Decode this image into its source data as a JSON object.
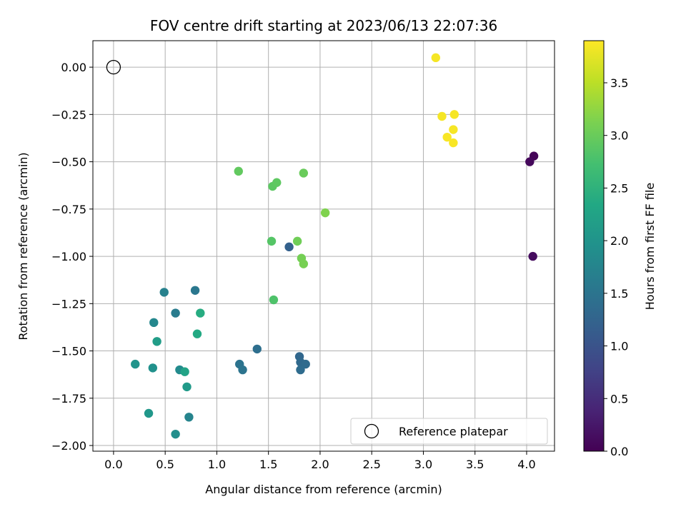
{
  "chart_data": {
    "type": "scatter",
    "title": "FOV centre drift starting at 2023/06/13 22:07:36",
    "xlabel": "Angular distance from reference (arcmin)",
    "ylabel": "Rotation from reference (arcmin)",
    "xlim": [
      -0.2,
      4.27
    ],
    "ylim": [
      -2.03,
      0.14
    ],
    "xticks": [
      "0.0",
      "0.5",
      "1.0",
      "1.5",
      "2.0",
      "2.5",
      "3.0",
      "3.5",
      "4.0"
    ],
    "xtick_values": [
      0,
      0.5,
      1,
      1.5,
      2,
      2.5,
      3,
      3.5,
      4
    ],
    "yticks": [
      "0.00",
      "−0.25",
      "−0.50",
      "−0.75",
      "−1.00",
      "−1.25",
      "−1.50",
      "−1.75",
      "−2.00"
    ],
    "ytick_values": [
      0,
      -0.25,
      -0.5,
      -0.75,
      -1.0,
      -1.25,
      -1.5,
      -1.75,
      -2.0
    ],
    "grid": true,
    "colormap": "viridis",
    "colorbar": {
      "label": "Hours from first FF file",
      "range": [
        0,
        3.9
      ],
      "ticks": [
        "0.0",
        "0.5",
        "1.0",
        "1.5",
        "2.0",
        "2.5",
        "3.0",
        "3.5"
      ],
      "tick_values": [
        0,
        0.5,
        1.0,
        1.5,
        2.0,
        2.5,
        3.0,
        3.5
      ]
    },
    "legend": {
      "placement": "lower-right",
      "entries": [
        {
          "label": "Reference platepar",
          "marker": "open-circle"
        }
      ]
    },
    "reference_point": {
      "x": 0.0,
      "y": 0.0
    },
    "points": [
      {
        "x": 4.07,
        "y": -0.47,
        "c": 0.05
      },
      {
        "x": 4.03,
        "y": -0.5,
        "c": 0.08
      },
      {
        "x": 4.06,
        "y": -1.0,
        "c": 0.12
      },
      {
        "x": 1.7,
        "y": -0.95,
        "c": 1.2
      },
      {
        "x": 1.8,
        "y": -1.53,
        "c": 1.3
      },
      {
        "x": 1.81,
        "y": -1.56,
        "c": 1.33
      },
      {
        "x": 1.86,
        "y": -1.57,
        "c": 1.36
      },
      {
        "x": 1.81,
        "y": -1.6,
        "c": 1.38
      },
      {
        "x": 1.39,
        "y": -1.49,
        "c": 1.42
      },
      {
        "x": 1.22,
        "y": -1.57,
        "c": 1.48
      },
      {
        "x": 1.25,
        "y": -1.6,
        "c": 1.5
      },
      {
        "x": 0.79,
        "y": -1.18,
        "c": 1.55
      },
      {
        "x": 0.6,
        "y": -1.3,
        "c": 1.62
      },
      {
        "x": 0.49,
        "y": -1.19,
        "c": 1.7
      },
      {
        "x": 0.73,
        "y": -1.85,
        "c": 1.75
      },
      {
        "x": 0.39,
        "y": -1.35,
        "c": 1.8
      },
      {
        "x": 0.64,
        "y": -1.6,
        "c": 1.85
      },
      {
        "x": 0.6,
        "y": -1.94,
        "c": 1.9
      },
      {
        "x": 0.38,
        "y": -1.59,
        "c": 1.95
      },
      {
        "x": 0.21,
        "y": -1.57,
        "c": 2.0
      },
      {
        "x": 0.34,
        "y": -1.83,
        "c": 2.05
      },
      {
        "x": 0.71,
        "y": -1.69,
        "c": 2.1
      },
      {
        "x": 0.42,
        "y": -1.45,
        "c": 2.15
      },
      {
        "x": 0.69,
        "y": -1.61,
        "c": 2.25
      },
      {
        "x": 0.81,
        "y": -1.41,
        "c": 2.35
      },
      {
        "x": 0.84,
        "y": -1.3,
        "c": 2.4
      },
      {
        "x": 1.55,
        "y": -1.23,
        "c": 2.8
      },
      {
        "x": 1.53,
        "y": -0.92,
        "c": 2.85
      },
      {
        "x": 1.54,
        "y": -0.63,
        "c": 2.9
      },
      {
        "x": 1.58,
        "y": -0.61,
        "c": 2.92
      },
      {
        "x": 1.21,
        "y": -0.55,
        "c": 2.95
      },
      {
        "x": 1.84,
        "y": -0.56,
        "c": 3.0
      },
      {
        "x": 1.78,
        "y": -0.92,
        "c": 3.05
      },
      {
        "x": 1.82,
        "y": -1.01,
        "c": 3.08
      },
      {
        "x": 1.84,
        "y": -1.04,
        "c": 3.1
      },
      {
        "x": 2.05,
        "y": -0.77,
        "c": 3.15
      },
      {
        "x": 3.12,
        "y": 0.05,
        "c": 3.85
      },
      {
        "x": 3.18,
        "y": -0.26,
        "c": 3.85
      },
      {
        "x": 3.3,
        "y": -0.25,
        "c": 3.86
      },
      {
        "x": 3.29,
        "y": -0.33,
        "c": 3.86
      },
      {
        "x": 3.23,
        "y": -0.37,
        "c": 3.87
      },
      {
        "x": 3.29,
        "y": -0.4,
        "c": 3.87
      }
    ]
  }
}
